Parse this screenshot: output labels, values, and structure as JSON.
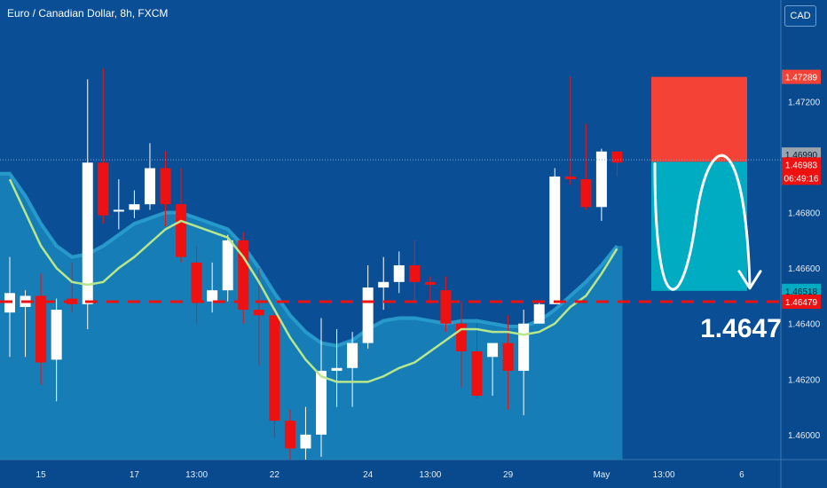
{
  "header": {
    "title": "Euro / Canadian Dollar, 8h, FXCM",
    "currency_button": "CAD"
  },
  "colors": {
    "background": "#0a4f96",
    "bull": "#ffffff",
    "bear": "#ee1111",
    "ma_band": "#2a9fcf",
    "ma_line": "#b8e68a",
    "stop_box": "#f44336",
    "target_box": "#00acc1",
    "dashed_line": "#ee1111"
  },
  "chart_data": {
    "type": "candlestick",
    "y_axis": {
      "ticks": [
        "1.47200",
        "1.46800",
        "1.46600",
        "1.46400",
        "1.46200",
        "1.46000"
      ],
      "ylim": [
        1.4591,
        1.4747
      ]
    },
    "x_axis": {
      "ticks": [
        {
          "label": "15",
          "index": 2
        },
        {
          "label": "17",
          "index": 8
        },
        {
          "label": "13:00",
          "index": 12
        },
        {
          "label": "22",
          "index": 17
        },
        {
          "label": "24",
          "index": 23
        },
        {
          "label": "13:00",
          "index": 27
        },
        {
          "label": "29",
          "index": 32
        },
        {
          "label": "May",
          "index": 38
        },
        {
          "label": "13:00",
          "index": 42
        },
        {
          "label": "6",
          "index": 47
        }
      ]
    },
    "candles": [
      {
        "o": 1.4644,
        "h": 1.4664,
        "l": 1.4628,
        "c": 1.4651
      },
      {
        "o": 1.4646,
        "h": 1.4652,
        "l": 1.4628,
        "c": 1.465
      },
      {
        "o": 1.465,
        "h": 1.4658,
        "l": 1.4618,
        "c": 1.4626
      },
      {
        "o": 1.4627,
        "h": 1.4649,
        "l": 1.4612,
        "c": 1.4645
      },
      {
        "o": 1.4649,
        "h": 1.4662,
        "l": 1.4644,
        "c": 1.4647
      },
      {
        "o": 1.4647,
        "h": 1.4728,
        "l": 1.4638,
        "c": 1.4698
      },
      {
        "o": 1.4698,
        "h": 1.4732,
        "l": 1.4676,
        "c": 1.4679
      },
      {
        "o": 1.4681,
        "h": 1.4692,
        "l": 1.4674,
        "c": 1.4681
      },
      {
        "o": 1.4681,
        "h": 1.4688,
        "l": 1.4678,
        "c": 1.4683
      },
      {
        "o": 1.4683,
        "h": 1.4705,
        "l": 1.4681,
        "c": 1.4696
      },
      {
        "o": 1.4696,
        "h": 1.4702,
        "l": 1.4675,
        "c": 1.4683
      },
      {
        "o": 1.4683,
        "h": 1.4696,
        "l": 1.4662,
        "c": 1.4664
      },
      {
        "o": 1.4662,
        "h": 1.4668,
        "l": 1.464,
        "c": 1.4648
      },
      {
        "o": 1.4648,
        "h": 1.4662,
        "l": 1.4644,
        "c": 1.4652
      },
      {
        "o": 1.4652,
        "h": 1.4672,
        "l": 1.4648,
        "c": 1.467
      },
      {
        "o": 1.467,
        "h": 1.4673,
        "l": 1.464,
        "c": 1.4645
      },
      {
        "o": 1.4645,
        "h": 1.466,
        "l": 1.4625,
        "c": 1.4643
      },
      {
        "o": 1.4643,
        "h": 1.4645,
        "l": 1.4599,
        "c": 1.4605
      },
      {
        "o": 1.4605,
        "h": 1.4609,
        "l": 1.4591,
        "c": 1.4595
      },
      {
        "o": 1.4595,
        "h": 1.461,
        "l": 1.4591,
        "c": 1.46
      },
      {
        "o": 1.46,
        "h": 1.4642,
        "l": 1.4592,
        "c": 1.4623
      },
      {
        "o": 1.4623,
        "h": 1.4638,
        "l": 1.461,
        "c": 1.4624
      },
      {
        "o": 1.4624,
        "h": 1.4637,
        "l": 1.461,
        "c": 1.4633
      },
      {
        "o": 1.4633,
        "h": 1.4661,
        "l": 1.4631,
        "c": 1.4653
      },
      {
        "o": 1.4653,
        "h": 1.4664,
        "l": 1.4645,
        "c": 1.4655
      },
      {
        "o": 1.4655,
        "h": 1.4666,
        "l": 1.4651,
        "c": 1.4661
      },
      {
        "o": 1.4661,
        "h": 1.467,
        "l": 1.4648,
        "c": 1.4655
      },
      {
        "o": 1.4655,
        "h": 1.4657,
        "l": 1.4647,
        "c": 1.4654
      },
      {
        "o": 1.4652,
        "h": 1.4657,
        "l": 1.4637,
        "c": 1.464
      },
      {
        "o": 1.464,
        "h": 1.4648,
        "l": 1.4617,
        "c": 1.463
      },
      {
        "o": 1.463,
        "h": 1.464,
        "l": 1.4613,
        "c": 1.4614
      },
      {
        "o": 1.4628,
        "h": 1.4632,
        "l": 1.4614,
        "c": 1.4633
      },
      {
        "o": 1.4633,
        "h": 1.4643,
        "l": 1.4609,
        "c": 1.4623
      },
      {
        "o": 1.4623,
        "h": 1.4645,
        "l": 1.4607,
        "c": 1.464
      },
      {
        "o": 1.464,
        "h": 1.4648,
        "l": 1.464,
        "c": 1.4647
      },
      {
        "o": 1.4647,
        "h": 1.4696,
        "l": 1.4647,
        "c": 1.4693
      },
      {
        "o": 1.4693,
        "h": 1.4729,
        "l": 1.469,
        "c": 1.4692
      },
      {
        "o": 1.4692,
        "h": 1.4712,
        "l": 1.4681,
        "c": 1.4682
      },
      {
        "o": 1.4682,
        "h": 1.4703,
        "l": 1.4677,
        "c": 1.4702
      },
      {
        "o": 1.4702,
        "h": 1.4702,
        "l": 1.4693,
        "c": 1.4698
      }
    ],
    "moving_average": [
      1.4692,
      1.468,
      1.4668,
      1.466,
      1.4655,
      1.4654,
      1.4655,
      1.466,
      1.4664,
      1.4669,
      1.4674,
      1.4677,
      1.4675,
      1.4673,
      1.4671,
      1.4664,
      1.4655,
      1.4645,
      1.4635,
      1.4627,
      1.4621,
      1.4619,
      1.4619,
      1.4619,
      1.4621,
      1.4624,
      1.4626,
      1.463,
      1.4634,
      1.4638,
      1.4638,
      1.4637,
      1.4637,
      1.4636,
      1.4637,
      1.464,
      1.4646,
      1.465,
      1.4658,
      1.4667
    ],
    "ma_band_upper": [
      1.4694,
      1.4686,
      1.4676,
      1.4668,
      1.4664,
      1.4665,
      1.4668,
      1.4672,
      1.4676,
      1.4678,
      1.468,
      1.468,
      1.4678,
      1.4676,
      1.4674,
      1.4668,
      1.466,
      1.4651,
      1.4643,
      1.4637,
      1.4633,
      1.4632,
      1.4634,
      1.4638,
      1.4641,
      1.4642,
      1.4642,
      1.4641,
      1.464,
      1.4641,
      1.4641,
      1.464,
      1.4639,
      1.4639,
      1.4641,
      1.4645,
      1.465,
      1.4655,
      1.4661,
      1.4668
    ],
    "trade": {
      "stop_top": 1.47289,
      "entry": 1.46983,
      "target": 1.46518,
      "start_index": 40,
      "end_index": 46
    },
    "horizontal_levels": {
      "current_price": 1.4699,
      "dashed_level": 1.46479
    },
    "price_labels": [
      {
        "text": "1.47289",
        "value": 1.47289,
        "type": "stop"
      },
      {
        "text": "1.46990",
        "value": 1.4699,
        "type": "current"
      },
      {
        "text": "1.46983",
        "value": 1.46983,
        "type": "bid"
      },
      {
        "text": "06:49:16",
        "value": 1.46983,
        "type": "countdown"
      },
      {
        "text": "1.46518",
        "value": 1.46518,
        "type": "target"
      },
      {
        "text": "1.46479",
        "value": 1.46479,
        "type": "level"
      }
    ],
    "annotation": "1.4647"
  }
}
